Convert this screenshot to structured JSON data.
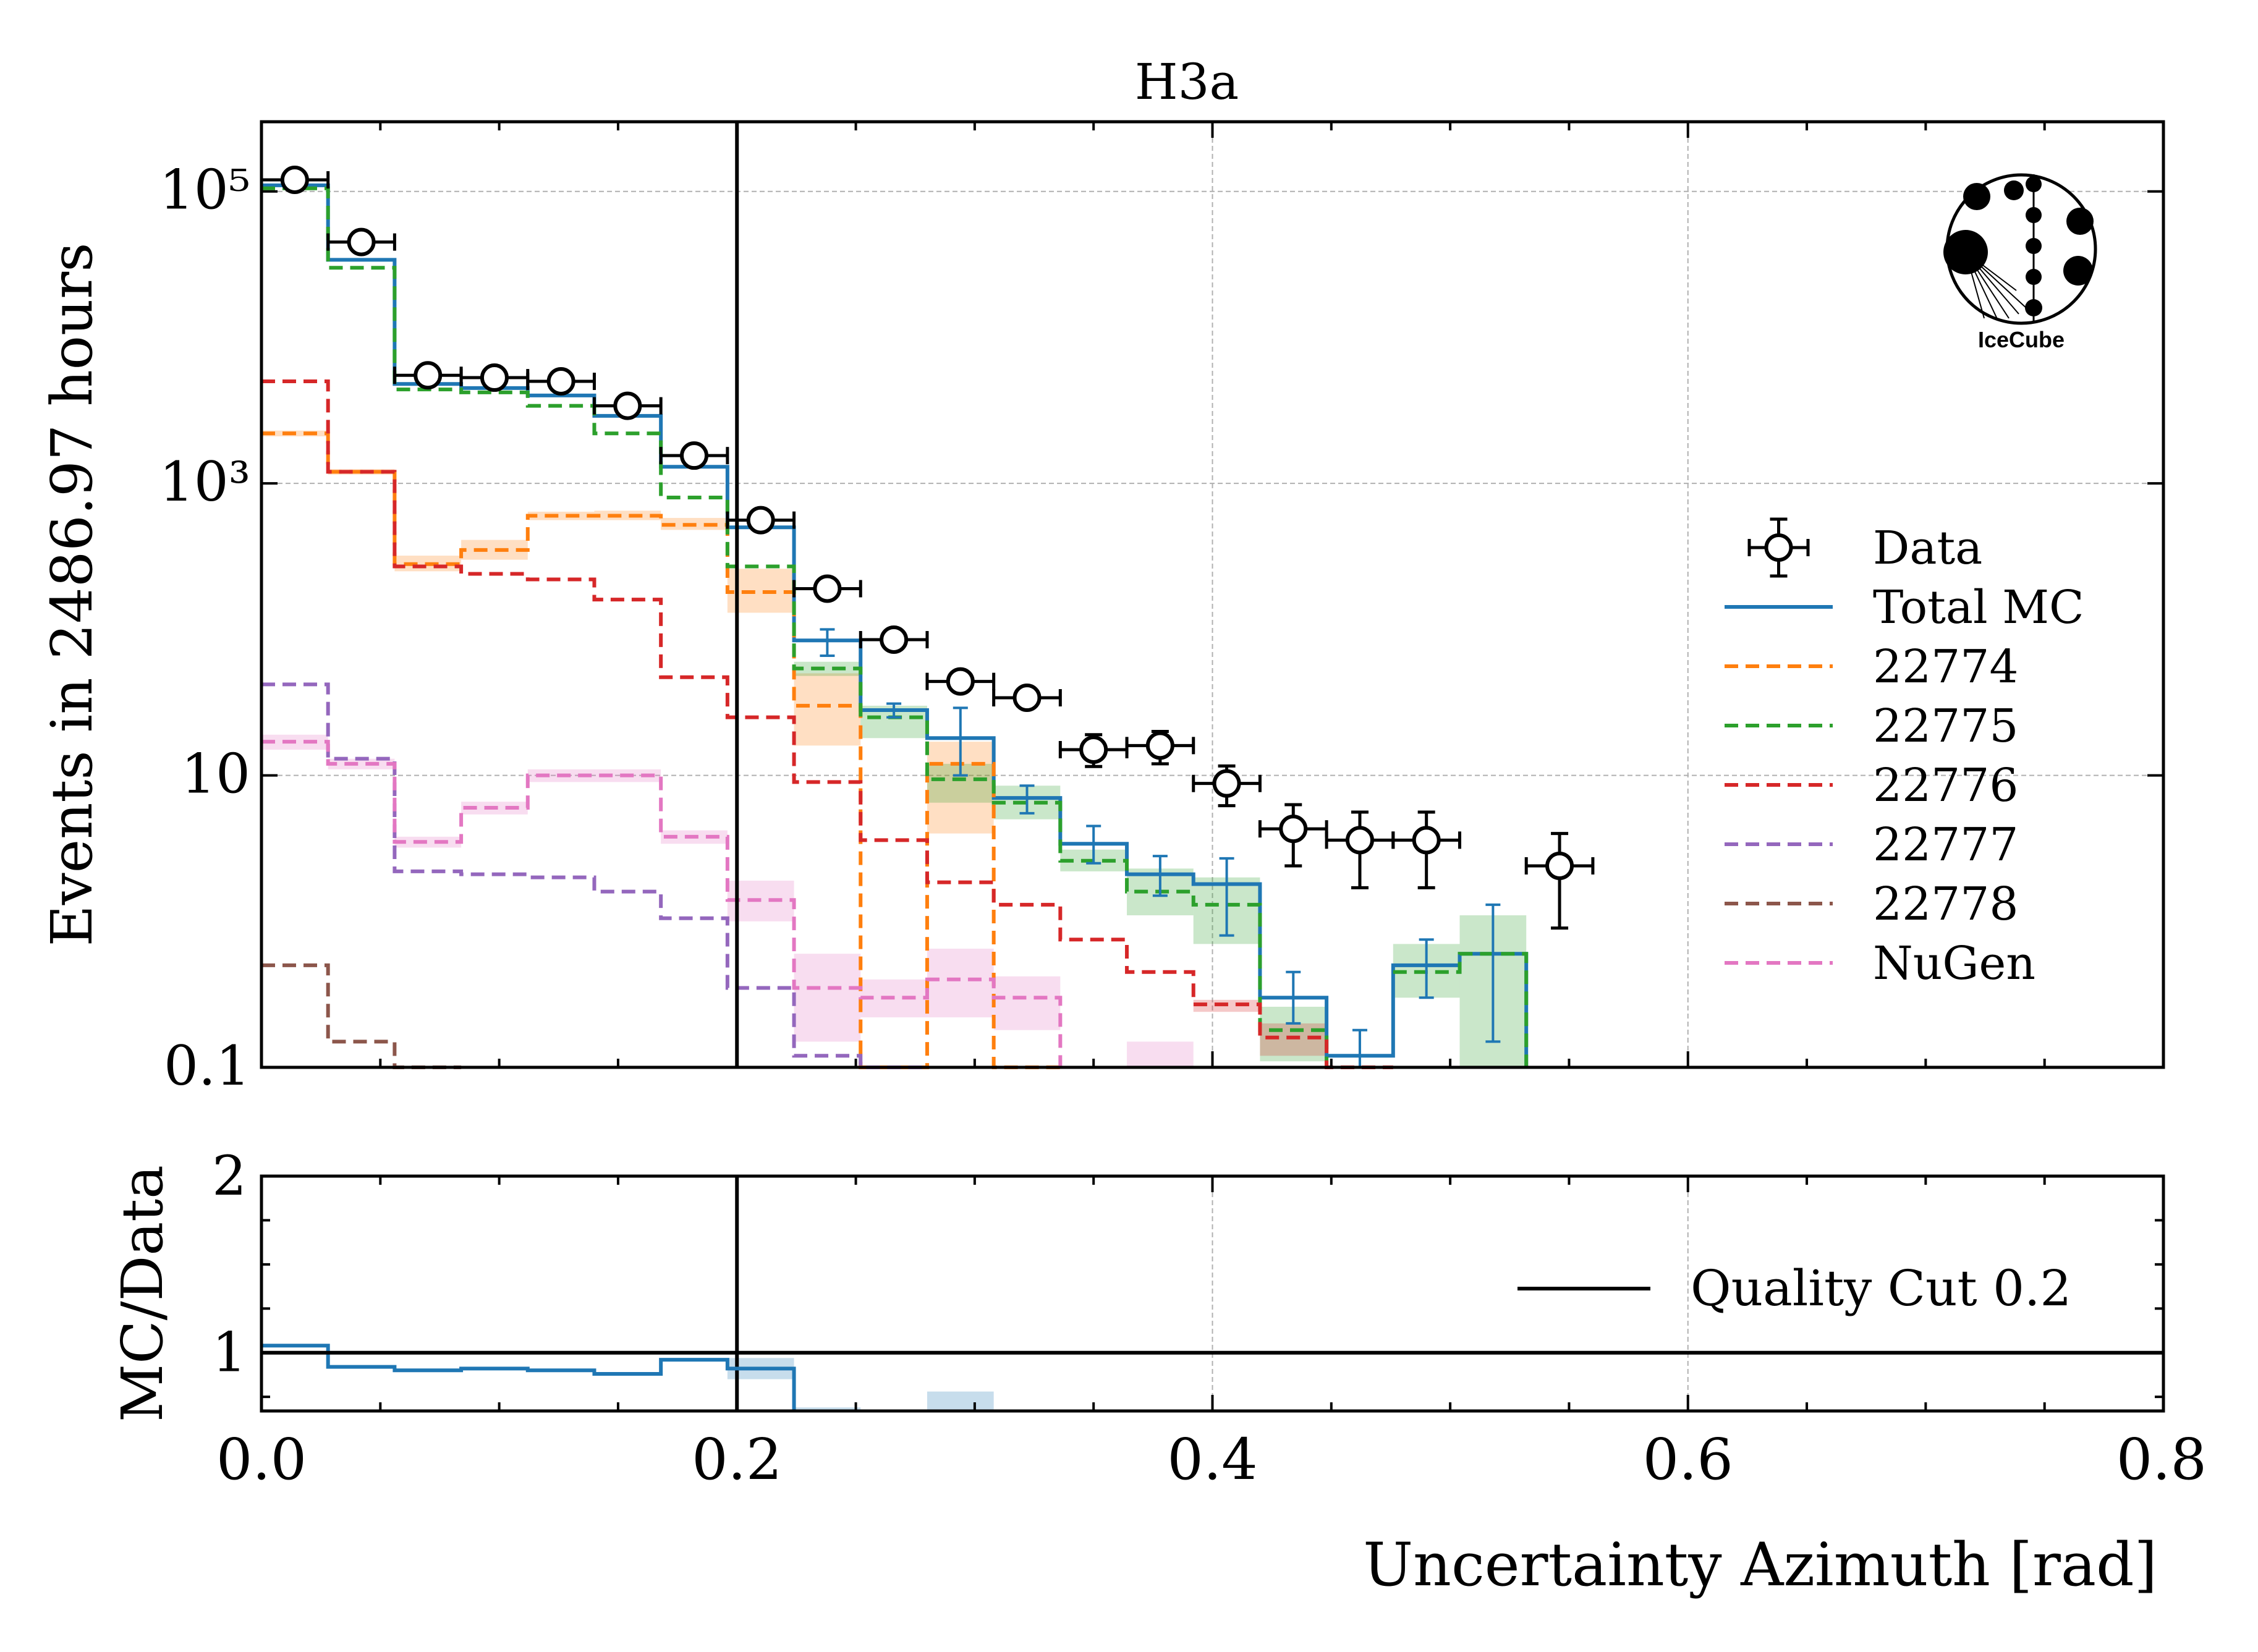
{
  "title": "H3a",
  "logo_text": "IceCube",
  "colors": {
    "data": "#000000",
    "total_mc": "#1f77b4",
    "s22774": "#ff7f0e",
    "s22775": "#2ca02c",
    "s22776": "#d62728",
    "s22777": "#9467bd",
    "s22778": "#8c564b",
    "nugen": "#e377c2",
    "cut": "#000000"
  },
  "chart_data": [
    {
      "type": "line",
      "panel": "main",
      "title": "H3a",
      "xlabel": "Uncertainty Azimuth [rad]",
      "ylabel": "Events in 2486.97 hours",
      "xlim": [
        0.0,
        0.8
      ],
      "ylim": [
        0.1,
        300000
      ],
      "yscale": "log",
      "yticks": [
        {
          "value": 0.1,
          "label": "0.1"
        },
        {
          "value": 10,
          "label": "10"
        },
        {
          "value": 1000,
          "label": "10³"
        },
        {
          "value": 100000,
          "label": "10⁵"
        }
      ],
      "grid": true,
      "legend": "center-right",
      "bin_edges": [
        0.0,
        0.028,
        0.056,
        0.084,
        0.112,
        0.14,
        0.168,
        0.196,
        0.224,
        0.252,
        0.28,
        0.308,
        0.336,
        0.364,
        0.392,
        0.42,
        0.448,
        0.476,
        0.504,
        0.532,
        0.56
      ],
      "series": [
        {
          "name": "Data",
          "key": "data",
          "style": "points",
          "x": [
            0.014,
            0.042,
            0.07,
            0.098,
            0.126,
            0.154,
            0.182,
            0.21,
            0.238,
            0.266,
            0.294,
            0.322,
            0.35,
            0.378,
            0.406,
            0.434,
            0.462,
            0.49,
            0.546
          ],
          "y": [
            120000,
            45000,
            5500,
            5300,
            5000,
            3400,
            1550,
            560,
            190,
            85,
            44,
            34,
            15,
            16,
            8.8,
            4.3,
            3.6,
            3.6,
            2.4
          ],
          "yerr_lo": [
            0,
            0,
            0,
            0,
            0,
            0,
            0,
            0,
            0,
            0,
            0,
            0,
            3.5,
            4,
            2.6,
            1.9,
            1.9,
            1.9,
            1.5
          ],
          "yerr_hi": [
            0,
            0,
            0,
            0,
            0,
            0,
            0,
            0,
            0,
            0,
            0,
            0,
            4,
            4,
            2.8,
            2.0,
            2.0,
            2.0,
            1.6
          ]
        },
        {
          "name": "Total MC",
          "key": "total_mc",
          "style": "step-solid",
          "y": [
            110000,
            34000,
            4800,
            4500,
            4000,
            2900,
            1300,
            500,
            84,
            28,
            18,
            7,
            3.4,
            2.1,
            1.8,
            0.3,
            0.12,
            0.5,
            0.6,
            null
          ],
          "err": [
            [
              0,
              0
            ],
            [
              0,
              0
            ],
            [
              0,
              0
            ],
            [
              0,
              0
            ],
            [
              0,
              0
            ],
            [
              0,
              0
            ],
            [
              0,
              0
            ],
            [
              0,
              0
            ],
            [
              66,
              100
            ],
            [
              25,
              31
            ],
            [
              10,
              29
            ],
            [
              5.5,
              8.5
            ],
            [
              2.5,
              4.5
            ],
            [
              1.5,
              2.8
            ],
            [
              0.8,
              2.7
            ],
            [
              0.2,
              0.45
            ],
            [
              0.07,
              0.18
            ],
            [
              0.3,
              0.75
            ],
            [
              0.15,
              1.3
            ],
            [
              0,
              0
            ]
          ]
        },
        {
          "name": "22774",
          "key": "s22774",
          "style": "step-dashed",
          "y": [
            2200,
            1200,
            280,
            350,
            600,
            600,
            520,
            180,
            30,
            0.05,
            12,
            0.05,
            null,
            null,
            null,
            null,
            null,
            null,
            null,
            null
          ],
          "band": [
            [
              2100,
              2300
            ],
            [
              1150,
              1250
            ],
            [
              250,
              320
            ],
            [
              300,
              410
            ],
            [
              560,
              640
            ],
            [
              560,
              650
            ],
            [
              480,
              580
            ],
            [
              130,
              260
            ],
            [
              16,
              50
            ],
            null,
            [
              4,
              17
            ],
            null,
            null,
            null,
            null,
            null,
            null,
            null,
            null,
            null
          ]
        },
        {
          "name": "22775",
          "key": "s22775",
          "style": "step-dashed",
          "y": [
            105000,
            30000,
            4400,
            4200,
            3400,
            2200,
            800,
            270,
            54,
            25,
            9.4,
            6.5,
            2.6,
            1.6,
            1.3,
            0.18,
            null,
            0.45,
            0.6,
            null
          ],
          "band": [
            null,
            null,
            null,
            null,
            null,
            null,
            null,
            null,
            [
              48,
              60
            ],
            [
              18,
              30
            ],
            [
              6.5,
              12
            ],
            [
              5,
              8.5
            ],
            [
              2.2,
              3.1
            ],
            [
              1.1,
              2.3
            ],
            [
              0.7,
              2.0
            ],
            [
              0.11,
              0.26
            ],
            null,
            [
              0.3,
              0.7
            ],
            [
              0.08,
              1.1
            ],
            null
          ]
        },
        {
          "name": "22776",
          "key": "s22776",
          "style": "step-dashed",
          "y": [
            5000,
            1200,
            270,
            240,
            220,
            160,
            47,
            25,
            9,
            3.6,
            1.85,
            1.3,
            0.75,
            0.45,
            0.27,
            0.16,
            0.08,
            null,
            null,
            null
          ],
          "band": [
            null,
            null,
            null,
            null,
            null,
            null,
            null,
            null,
            null,
            null,
            null,
            null,
            null,
            null,
            [
              0.24,
              0.29
            ],
            [
              0.12,
              0.2
            ],
            null,
            null,
            null,
            null
          ]
        },
        {
          "name": "22777",
          "key": "s22777",
          "style": "step-dashed",
          "y": [
            42,
            13,
            2.2,
            2.1,
            2.0,
            1.6,
            1.05,
            0.35,
            0.12,
            0.095,
            null,
            null,
            null,
            null,
            null,
            null,
            null,
            null,
            null,
            null
          ]
        },
        {
          "name": "22778",
          "key": "s22778",
          "style": "step-dashed",
          "y": [
            0.5,
            0.15,
            0.08,
            null,
            null,
            null,
            null,
            null,
            null,
            null,
            null,
            null,
            null,
            null,
            null,
            null,
            null,
            null,
            null,
            null
          ]
        },
        {
          "name": "NuGen",
          "key": "nugen",
          "style": "step-dashed",
          "y": [
            17,
            12,
            3.5,
            6,
            10,
            10,
            3.8,
            1.4,
            0.35,
            0.3,
            0.4,
            0.3,
            null,
            null,
            null,
            null,
            null,
            null,
            null,
            null
          ],
          "band": [
            [
              15,
              19
            ],
            [
              11,
              13
            ],
            [
              3.2,
              3.8
            ],
            [
              5.4,
              6.6
            ],
            [
              9,
              11
            ],
            [
              9,
              11
            ],
            [
              3.4,
              4.2
            ],
            [
              1.0,
              1.9
            ],
            [
              0.15,
              0.6
            ],
            [
              0.22,
              0.4
            ],
            [
              0.22,
              0.65
            ],
            [
              0.18,
              0.42
            ],
            null,
            [
              0.1,
              0.15
            ],
            null,
            null,
            null,
            null,
            null,
            null
          ]
        }
      ]
    },
    {
      "type": "line",
      "panel": "ratio",
      "xlabel": "Uncertainty Azimuth [rad]",
      "ylabel": "MC/Data",
      "xlim": [
        0.0,
        0.8
      ],
      "ylim": [
        0.67,
        2.0
      ],
      "xticks": [
        {
          "value": 0.0,
          "label": "0.0"
        },
        {
          "value": 0.2,
          "label": "0.2"
        },
        {
          "value": 0.4,
          "label": "0.4"
        },
        {
          "value": 0.6,
          "label": "0.6"
        },
        {
          "value": 0.8,
          "label": "0.8"
        }
      ],
      "yticks": [
        {
          "value": 1,
          "label": "1"
        },
        {
          "value": 2,
          "label": "2"
        }
      ],
      "legend": "center-right",
      "ratio": {
        "name": "MC/Data",
        "y": [
          1.04,
          0.92,
          0.9,
          0.91,
          0.9,
          0.88,
          0.96,
          0.91,
          null,
          null,
          null,
          null,
          null,
          null,
          null,
          null,
          null,
          null,
          null,
          null
        ],
        "band": [
          null,
          null,
          null,
          null,
          null,
          null,
          null,
          [
            0.85,
            0.97
          ],
          [
            0.67,
            0.69
          ],
          null,
          [
            0.67,
            0.78
          ],
          null,
          null,
          null,
          null,
          null,
          null,
          null,
          null,
          null
        ]
      },
      "reference_line": 1.0,
      "quality_cut": {
        "name": "Quality Cut 0.2",
        "x": 0.2
      }
    }
  ]
}
